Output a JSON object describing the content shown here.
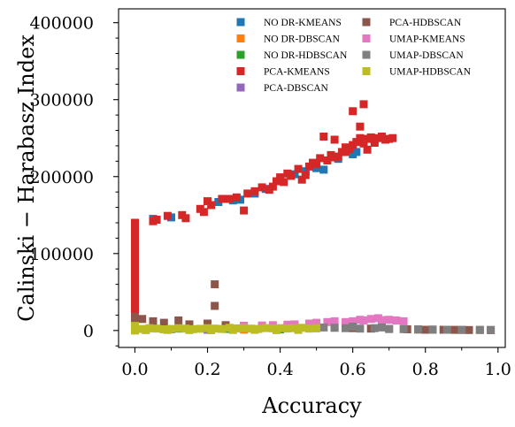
{
  "chart_data": {
    "type": "scatter",
    "title": "",
    "xlabel": "Accuracy",
    "ylabel": "Calinski − Harabasz Index",
    "xlim": [
      -0.045,
      1.02
    ],
    "ylim": [
      -22000,
      418000
    ],
    "x_ticks": [
      {
        "value": 0.0,
        "label": "0.0"
      },
      {
        "value": 0.2,
        "label": "0.2"
      },
      {
        "value": 0.4,
        "label": "0.4"
      },
      {
        "value": 0.6,
        "label": "0.6"
      },
      {
        "value": 0.8,
        "label": "0.8"
      },
      {
        "value": 1.0,
        "label": "1.0"
      }
    ],
    "y_ticks": [
      {
        "value": 0,
        "label": "0"
      },
      {
        "value": 100000,
        "label": "100000"
      },
      {
        "value": 200000,
        "label": "200000"
      },
      {
        "value": 300000,
        "label": "300000"
      },
      {
        "value": 400000,
        "label": "400000"
      }
    ],
    "grid": false,
    "legend_placement": "top-right",
    "series": [
      {
        "name": "NO DR-KMEANS",
        "color": "#1f77b4",
        "points": [
          [
            0.0,
            50000
          ],
          [
            0.0,
            47000
          ],
          [
            0.05,
            145000
          ],
          [
            0.1,
            147000
          ],
          [
            0.23,
            167000
          ],
          [
            0.27,
            169000
          ],
          [
            0.29,
            170000
          ],
          [
            0.33,
            178000
          ],
          [
            0.36,
            184000
          ],
          [
            0.4,
            195000
          ],
          [
            0.44,
            203000
          ],
          [
            0.47,
            207000
          ],
          [
            0.5,
            211000
          ],
          [
            0.52,
            209000
          ],
          [
            0.56,
            223000
          ],
          [
            0.6,
            229000
          ],
          [
            0.61,
            232000
          ]
        ]
      },
      {
        "name": "NO DR-DBSCAN",
        "color": "#ff7f0e",
        "points": [
          [
            0.0,
            1000
          ],
          [
            0.08,
            1500
          ],
          [
            0.3,
            1200
          ]
        ]
      },
      {
        "name": "NO DR-HDBSCAN",
        "color": "#2ca02c",
        "points": [
          [
            0.0,
            2000
          ],
          [
            0.05,
            3000
          ],
          [
            0.12,
            2500
          ],
          [
            0.25,
            2000
          ],
          [
            0.4,
            1500
          ]
        ]
      },
      {
        "name": "PCA-KMEANS",
        "color": "#d62728",
        "points": [
          [
            0.0,
            140000
          ],
          [
            0.0,
            132000
          ],
          [
            0.0,
            125000
          ],
          [
            0.0,
            118000
          ],
          [
            0.0,
            110000
          ],
          [
            0.0,
            100000
          ],
          [
            0.0,
            92000
          ],
          [
            0.0,
            85000
          ],
          [
            0.0,
            78000
          ],
          [
            0.0,
            72000
          ],
          [
            0.0,
            65000
          ],
          [
            0.0,
            58000
          ],
          [
            0.0,
            50000
          ],
          [
            0.0,
            42000
          ],
          [
            0.0,
            35000
          ],
          [
            0.0,
            28000
          ],
          [
            0.0,
            20000
          ],
          [
            0.0,
            12000
          ],
          [
            0.0,
            5000
          ],
          [
            0.05,
            142000
          ],
          [
            0.06,
            144000
          ],
          [
            0.09,
            149000
          ],
          [
            0.13,
            150000
          ],
          [
            0.14,
            146000
          ],
          [
            0.18,
            158000
          ],
          [
            0.19,
            154000
          ],
          [
            0.2,
            168000
          ],
          [
            0.21,
            163000
          ],
          [
            0.24,
            171000
          ],
          [
            0.26,
            171000
          ],
          [
            0.28,
            173000
          ],
          [
            0.3,
            156000
          ],
          [
            0.31,
            178000
          ],
          [
            0.33,
            181000
          ],
          [
            0.35,
            186000
          ],
          [
            0.37,
            183000
          ],
          [
            0.38,
            187000
          ],
          [
            0.39,
            194000
          ],
          [
            0.4,
            199000
          ],
          [
            0.41,
            193000
          ],
          [
            0.42,
            204000
          ],
          [
            0.43,
            201000
          ],
          [
            0.45,
            210000
          ],
          [
            0.46,
            196000
          ],
          [
            0.47,
            202000
          ],
          [
            0.48,
            213000
          ],
          [
            0.49,
            218000
          ],
          [
            0.5,
            216000
          ],
          [
            0.51,
            224000
          ],
          [
            0.52,
            252000
          ],
          [
            0.53,
            221000
          ],
          [
            0.54,
            228000
          ],
          [
            0.55,
            248000
          ],
          [
            0.56,
            226000
          ],
          [
            0.57,
            232000
          ],
          [
            0.58,
            238000
          ],
          [
            0.59,
            236000
          ],
          [
            0.6,
            241000
          ],
          [
            0.6,
            285000
          ],
          [
            0.61,
            245000
          ],
          [
            0.62,
            250000
          ],
          [
            0.63,
            243000
          ],
          [
            0.63,
            294000
          ],
          [
            0.64,
            249000
          ],
          [
            0.65,
            251000
          ],
          [
            0.66,
            247000
          ],
          [
            0.67,
            250000
          ],
          [
            0.68,
            252000
          ],
          [
            0.69,
            248000
          ],
          [
            0.7,
            249000
          ],
          [
            0.71,
            250000
          ],
          [
            0.62,
            265000
          ],
          [
            0.64,
            235000
          ],
          [
            0.66,
            244000
          ],
          [
            0.58,
            232000
          ],
          [
            0.55,
            225000
          ]
        ]
      },
      {
        "name": "PCA-DBSCAN",
        "color": "#9467bd",
        "points": [
          [
            0.0,
            2000
          ],
          [
            0.1,
            1500
          ],
          [
            0.2,
            1000
          ]
        ]
      },
      {
        "name": "PCA-HDBSCAN",
        "color": "#8c564b",
        "points": [
          [
            0.0,
            18000
          ],
          [
            0.0,
            14000
          ],
          [
            0.0,
            10000
          ],
          [
            0.02,
            15000
          ],
          [
            0.05,
            12000
          ],
          [
            0.08,
            10000
          ],
          [
            0.12,
            13000
          ],
          [
            0.15,
            8000
          ],
          [
            0.2,
            9000
          ],
          [
            0.22,
            60000
          ],
          [
            0.22,
            32000
          ],
          [
            0.25,
            7000
          ],
          [
            0.3,
            6000
          ],
          [
            0.35,
            5000
          ],
          [
            0.42,
            4000
          ],
          [
            0.5,
            3000
          ],
          [
            0.55,
            4000
          ],
          [
            0.6,
            3000
          ],
          [
            0.65,
            2500
          ],
          [
            0.7,
            2000
          ],
          [
            0.75,
            1500
          ],
          [
            0.8,
            1000
          ],
          [
            0.85,
            1000
          ],
          [
            0.9,
            800
          ],
          [
            0.95,
            700
          ],
          [
            0.98,
            500
          ],
          [
            0.78,
            1200
          ],
          [
            0.88,
            900
          ],
          [
            0.82,
            1100
          ],
          [
            0.92,
            600
          ]
        ]
      },
      {
        "name": "UMAP-KMEANS",
        "color": "#e377c2",
        "points": [
          [
            0.3,
            6000
          ],
          [
            0.38,
            7000
          ],
          [
            0.44,
            8000
          ],
          [
            0.5,
            10000
          ],
          [
            0.53,
            11000
          ],
          [
            0.55,
            12000
          ],
          [
            0.58,
            11000
          ],
          [
            0.6,
            12000
          ],
          [
            0.63,
            13000
          ],
          [
            0.65,
            15000
          ],
          [
            0.67,
            16000
          ],
          [
            0.7,
            14000
          ],
          [
            0.72,
            13000
          ],
          [
            0.74,
            12000
          ],
          [
            0.48,
            9000
          ],
          [
            0.42,
            7500
          ],
          [
            0.35,
            6500
          ],
          [
            0.62,
            14000
          ],
          [
            0.68,
            13500
          ]
        ]
      },
      {
        "name": "UMAP-DBSCAN",
        "color": "#7f7f7f",
        "points": [
          [
            0.52,
            4000
          ],
          [
            0.55,
            3500
          ],
          [
            0.58,
            3000
          ],
          [
            0.62,
            2500
          ],
          [
            0.66,
            3000
          ],
          [
            0.7,
            2000
          ],
          [
            0.74,
            1800
          ],
          [
            0.78,
            1500
          ],
          [
            0.82,
            1200
          ],
          [
            0.86,
            1000
          ],
          [
            0.9,
            900
          ],
          [
            0.95,
            800
          ],
          [
            0.98,
            700
          ],
          [
            0.6,
            5000
          ],
          [
            0.68,
            4000
          ]
        ]
      },
      {
        "name": "UMAP-HDBSCAN",
        "color": "#bcbd22",
        "points": [
          [
            0.0,
            0
          ],
          [
            0.0,
            3000
          ],
          [
            0.0,
            6000
          ],
          [
            0.02,
            2000
          ],
          [
            0.04,
            3000
          ],
          [
            0.06,
            2500
          ],
          [
            0.08,
            1500
          ],
          [
            0.1,
            2000
          ],
          [
            0.12,
            3000
          ],
          [
            0.14,
            2500
          ],
          [
            0.16,
            1800
          ],
          [
            0.18,
            2200
          ],
          [
            0.2,
            3000
          ],
          [
            0.22,
            2500
          ],
          [
            0.24,
            2000
          ],
          [
            0.26,
            3500
          ],
          [
            0.28,
            2800
          ],
          [
            0.3,
            3000
          ],
          [
            0.32,
            2500
          ],
          [
            0.34,
            2000
          ],
          [
            0.36,
            3200
          ],
          [
            0.38,
            2800
          ],
          [
            0.4,
            3000
          ],
          [
            0.42,
            2600
          ],
          [
            0.44,
            3000
          ],
          [
            0.46,
            3500
          ],
          [
            0.48,
            2500
          ],
          [
            0.5,
            3000
          ],
          [
            0.03,
            500
          ],
          [
            0.09,
            800
          ],
          [
            0.15,
            600
          ],
          [
            0.21,
            400
          ],
          [
            0.27,
            700
          ],
          [
            0.33,
            900
          ],
          [
            0.39,
            500
          ],
          [
            0.45,
            700
          ]
        ]
      }
    ]
  }
}
